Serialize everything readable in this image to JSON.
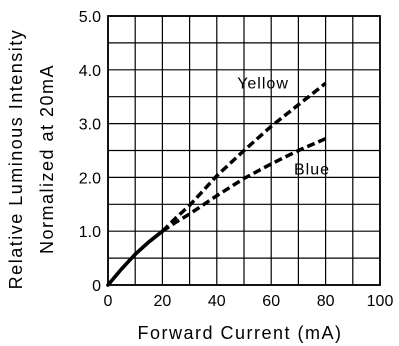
{
  "chart_data": {
    "type": "line",
    "xlabel": "Forward Current (mA)",
    "ylabel": "Relative Luminous Intensity",
    "ylabel2": "Normalized at 20mA",
    "xlim": [
      0,
      100
    ],
    "ylim": [
      0,
      5
    ],
    "x_ticks": [
      "0",
      "20",
      "40",
      "60",
      "80",
      "100"
    ],
    "y_ticks": [
      "0",
      "1.0",
      "2.0",
      "3.0",
      "4.0",
      "5.0"
    ],
    "grid": true,
    "series": [
      {
        "name": "Yellow",
        "x": [
          0,
          5,
          10,
          15,
          20,
          25,
          30,
          40,
          50,
          60,
          70,
          80
        ],
        "y": [
          0,
          0.3,
          0.57,
          0.8,
          1.0,
          1.25,
          1.48,
          2.03,
          2.5,
          2.95,
          3.35,
          3.75
        ]
      },
      {
        "name": "Blue",
        "x": [
          0,
          5,
          10,
          15,
          20,
          25,
          30,
          40,
          50,
          60,
          70,
          80
        ],
        "y": [
          0,
          0.3,
          0.57,
          0.8,
          1.0,
          1.17,
          1.32,
          1.66,
          1.98,
          2.25,
          2.5,
          2.72
        ]
      }
    ],
    "colors": {
      "line": "#000000",
      "grid": "#000000",
      "background": "#ffffff"
    }
  }
}
